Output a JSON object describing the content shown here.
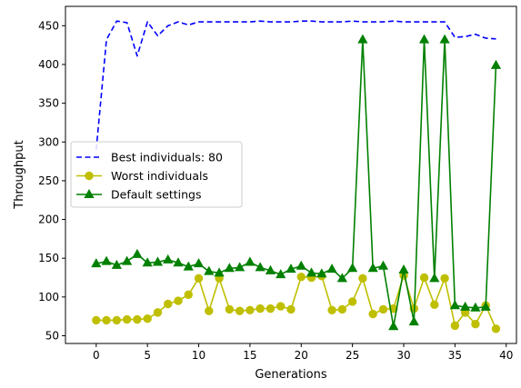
{
  "chart_data": {
    "type": "line",
    "title": "",
    "xlabel": "Generations",
    "ylabel": "Throughput",
    "xlim": [
      -3,
      41
    ],
    "ylim": [
      40,
      475
    ],
    "xticks": [
      0,
      5,
      10,
      15,
      20,
      25,
      30,
      35,
      40
    ],
    "yticks": [
      50,
      100,
      150,
      200,
      250,
      300,
      350,
      400,
      450
    ],
    "xtick_labels": [
      "0",
      "5",
      "10",
      "15",
      "20",
      "25",
      "30",
      "35",
      "40"
    ],
    "ytick_labels": [
      "50",
      "100",
      "150",
      "200",
      "250",
      "300",
      "350",
      "400",
      "450"
    ],
    "grid": false,
    "legend_position": "center-left",
    "x": [
      0,
      1,
      2,
      3,
      4,
      5,
      6,
      7,
      8,
      9,
      10,
      11,
      12,
      13,
      14,
      15,
      16,
      17,
      18,
      19,
      20,
      21,
      22,
      23,
      24,
      25,
      26,
      27,
      28,
      29,
      30,
      31,
      32,
      33,
      34,
      35,
      36,
      37,
      38,
      39
    ],
    "series": [
      {
        "name": "Best individuals: 80",
        "color": "#0000ff",
        "line_style": "dashed",
        "marker": "none",
        "values": [
          290,
          432,
          456,
          454,
          411,
          455,
          437,
          450,
          455,
          451,
          455,
          455,
          455,
          455,
          455,
          455,
          456,
          455,
          455,
          455,
          456,
          456,
          455,
          455,
          455,
          456,
          455,
          455,
          455,
          456,
          455,
          455,
          455,
          455,
          455,
          435,
          436,
          439,
          434,
          433
        ]
      },
      {
        "name": "Worst individuals",
        "color": "#bfbf00",
        "line_style": "solid",
        "marker": "circle",
        "values": [
          70,
          70,
          70,
          71,
          71,
          72,
          80,
          91,
          95,
          103,
          124,
          82,
          124,
          84,
          82,
          83,
          85,
          85,
          88,
          84,
          126,
          125,
          127,
          83,
          84,
          94,
          124,
          78,
          84,
          85,
          128,
          85,
          125,
          90,
          124,
          63,
          80,
          65,
          89,
          59
        ]
      },
      {
        "name": "Default settings",
        "color": "#008000",
        "line_style": "solid",
        "marker": "triangle-up",
        "values": [
          143,
          146,
          141,
          146,
          155,
          144,
          145,
          148,
          144,
          139,
          143,
          133,
          131,
          137,
          138,
          145,
          138,
          134,
          129,
          136,
          140,
          131,
          130,
          136,
          124,
          137,
          432,
          137,
          140,
          62,
          135,
          68,
          432,
          124,
          432,
          89,
          87,
          86,
          87,
          399
        ]
      }
    ]
  }
}
